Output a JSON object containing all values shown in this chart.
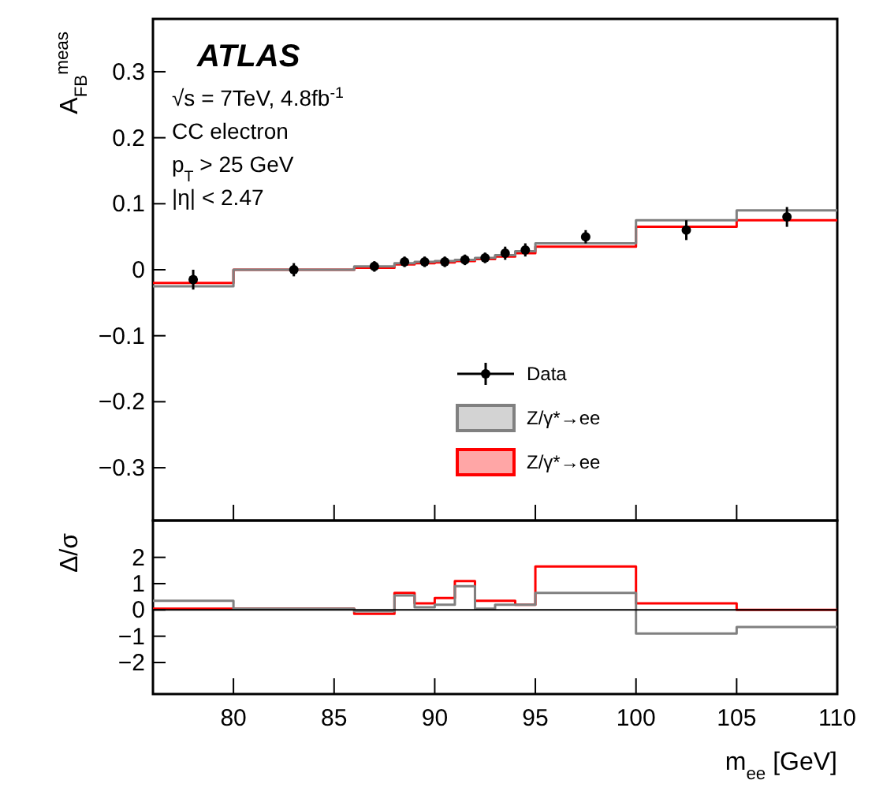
{
  "chart_data": [
    {
      "type": "histogram",
      "ylabel": "A$_{FB}$$^{meas}$",
      "annotations": [
        "ATLAS",
        "√s = 7TeV, 4.8fb$^{-1}$",
        "CC electron",
        "p$_{T}$ > 25 GeV",
        "|η| < 2.47"
      ],
      "bins": [
        76,
        80,
        86,
        88,
        89,
        90,
        91,
        92,
        93,
        94,
        95,
        100,
        105,
        110
      ],
      "series": [
        {
          "name": "Z/γ*→ee",
          "color": "#ff0000",
          "values": [
            -0.02,
            0.0,
            0.003,
            0.008,
            0.01,
            0.011,
            0.013,
            0.016,
            0.02,
            0.025,
            0.035,
            0.065,
            0.075
          ]
        },
        {
          "name": "Z/γ*→ee",
          "color": "#808080",
          "values": [
            -0.025,
            0.0,
            0.005,
            0.01,
            0.012,
            0.013,
            0.015,
            0.018,
            0.022,
            0.028,
            0.04,
            0.075,
            0.09
          ]
        },
        {
          "name": "Data",
          "type": "scatter",
          "color": "#000000",
          "marker": "circle",
          "x": [
            78,
            83,
            87,
            88.5,
            89.5,
            90.5,
            91.5,
            92.5,
            93.5,
            94.5,
            97.5,
            102.5,
            107.5
          ],
          "values": [
            -0.015,
            0.0,
            0.005,
            0.012,
            0.012,
            0.012,
            0.015,
            0.018,
            0.025,
            0.03,
            0.05,
            0.06,
            0.08
          ],
          "errors": [
            0.015,
            0.01,
            0.008,
            0.008,
            0.008,
            0.008,
            0.008,
            0.008,
            0.01,
            0.01,
            0.01,
            0.015,
            0.015
          ]
        }
      ],
      "xlim": [
        76,
        110
      ],
      "xticks": [
        80,
        85,
        90,
        95,
        100,
        105,
        110
      ],
      "ylim": [
        -0.38,
        0.38
      ],
      "yticks": [
        {
          "value": -0.3,
          "label": "−0.3"
        },
        {
          "value": -0.2,
          "label": "−0.2"
        },
        {
          "value": -0.1,
          "label": "−0.1"
        },
        0,
        0.1,
        0.2,
        0.3
      ],
      "tick_labels": "y",
      "legend": "bottom right",
      "grid": false
    },
    {
      "type": "histogram",
      "ylabel": "Δ/σ",
      "xlabel": "m$_{ee}$ [GeV]",
      "bins": [
        76,
        80,
        86,
        88,
        89,
        90,
        91,
        92,
        93,
        94,
        95,
        100,
        105,
        110
      ],
      "series": [
        {
          "color": "#ff0000",
          "values": [
            0.05,
            0.05,
            -0.15,
            0.65,
            0.25,
            0.45,
            1.1,
            0.35,
            0.35,
            0.2,
            1.65,
            0.25,
            0.0
          ]
        },
        {
          "color": "#808080",
          "values": [
            0.35,
            0.05,
            -0.05,
            0.55,
            0.1,
            0.2,
            0.9,
            0.05,
            0.2,
            0.2,
            0.65,
            -0.9,
            -0.65
          ]
        }
      ],
      "ref_lines": [
        {
          "axis": "y",
          "value": 0,
          "color": "#000000"
        }
      ],
      "xlim": [
        76,
        110
      ],
      "xticks": [
        80,
        85,
        90,
        95,
        100,
        105,
        110
      ],
      "ylim": [
        -3.2,
        3.4
      ],
      "yticks": [
        {
          "value": -2,
          "label": "−2"
        },
        {
          "value": -1,
          "label": "−1"
        },
        0,
        1,
        2
      ],
      "grid": false
    }
  ]
}
